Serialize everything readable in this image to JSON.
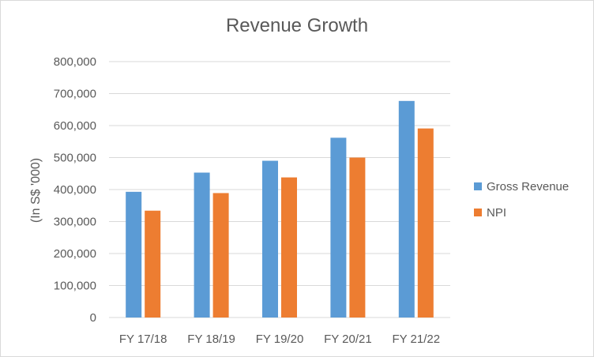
{
  "chart_data": {
    "type": "bar",
    "title": "Revenue Growth",
    "ylabel": "(In S$ '000)",
    "xlabel": "",
    "categories": [
      "FY 17/18",
      "FY 18/19",
      "FY 19/20",
      "FY 20/21",
      "FY 21/22"
    ],
    "series": [
      {
        "name": "Gross Revenue",
        "color": "#5b9bd5",
        "values": [
          393000,
          453000,
          490000,
          562000,
          677000
        ]
      },
      {
        "name": "NPI",
        "color": "#ed7d31",
        "values": [
          334000,
          389000,
          438000,
          500000,
          591000
        ]
      }
    ],
    "ylim": [
      0,
      800000
    ],
    "yticks": [
      "0",
      "100,000",
      "200,000",
      "300,000",
      "400,000",
      "500,000",
      "600,000",
      "700,000",
      "800,000"
    ],
    "grid": true,
    "legend_position": "right"
  }
}
